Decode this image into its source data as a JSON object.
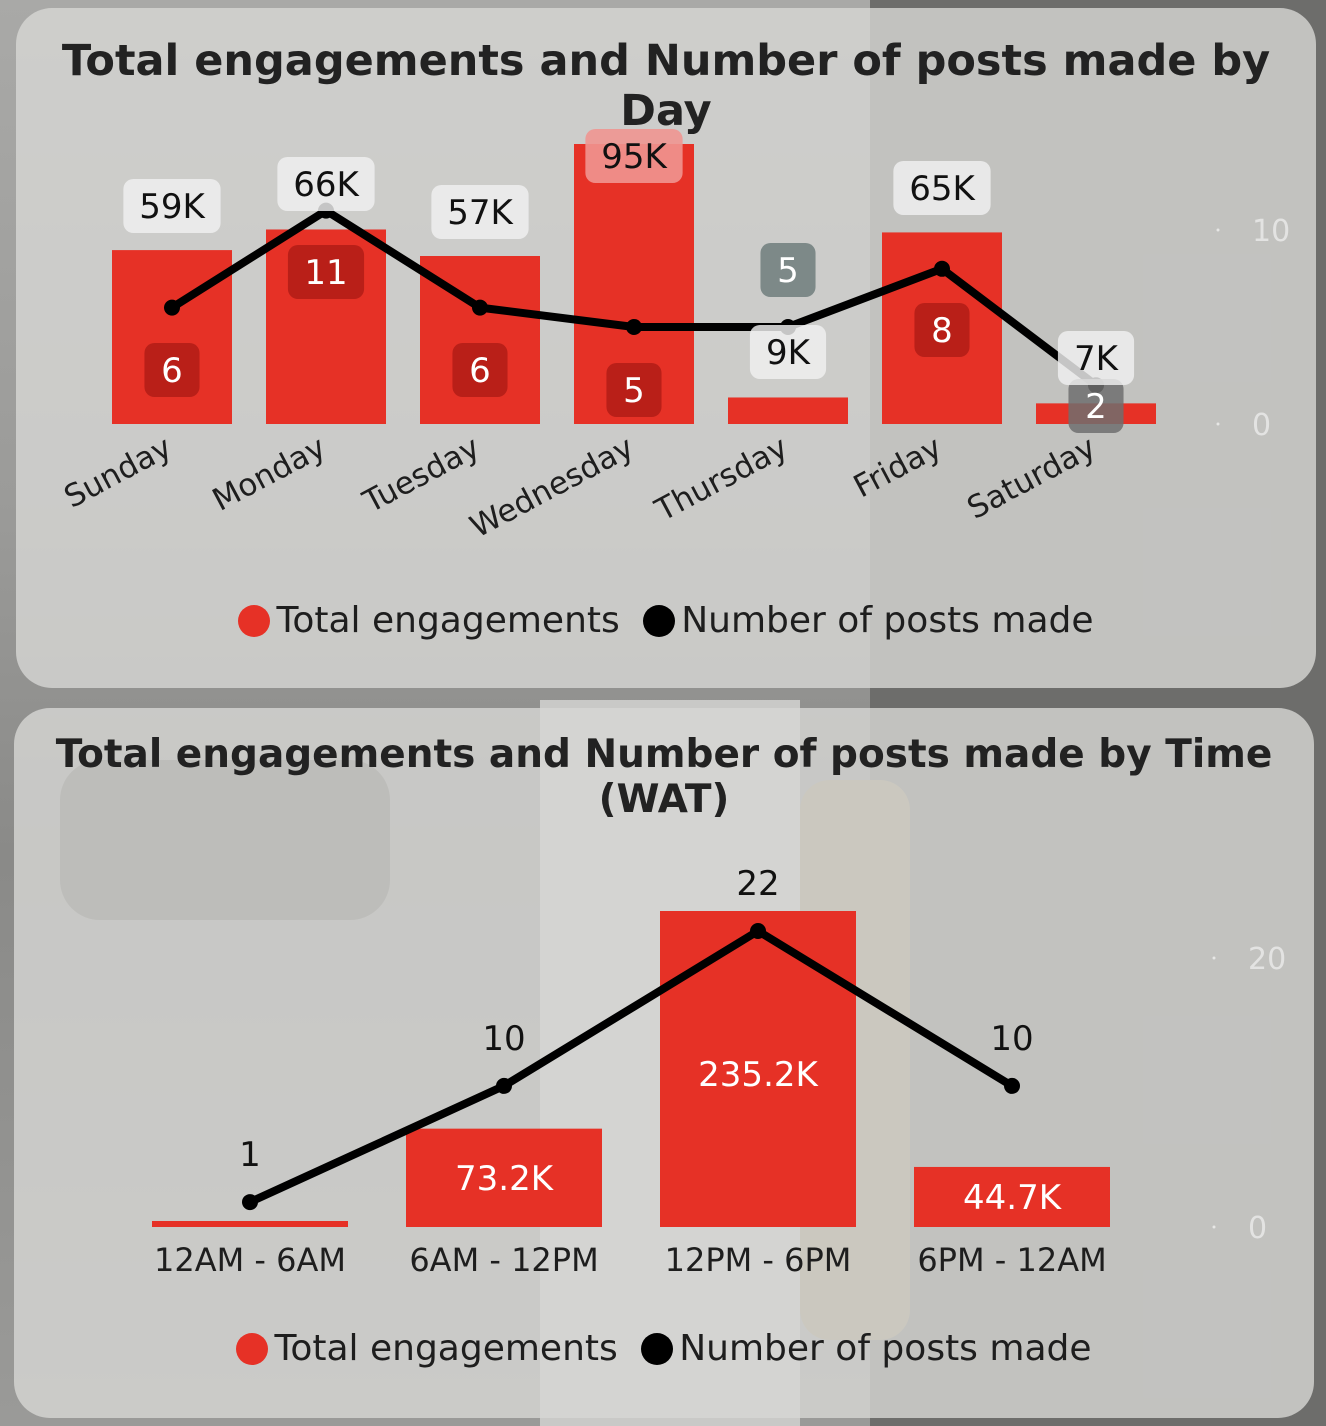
{
  "colors": {
    "bar": "#e63126",
    "line": "#000000",
    "bar_inner_label_bg": "#b9221b"
  },
  "chart_data": [
    {
      "type": "bar+line",
      "title": "Total engagements and Number of posts made by Day",
      "categories": [
        "Sunday",
        "Monday",
        "Tuesday",
        "Wednesday",
        "Thursday",
        "Friday",
        "Saturday"
      ],
      "series": [
        {
          "name": "Total engagements",
          "type": "bar",
          "values": [
            59000,
            66000,
            57000,
            95000,
            9000,
            65000,
            7000
          ],
          "labels": [
            "59K",
            "66K",
            "57K",
            "95K",
            "9K",
            "65K",
            "7K"
          ]
        },
        {
          "name": "Number of posts made",
          "type": "line",
          "values": [
            6,
            11,
            6,
            5,
            5,
            8,
            2
          ],
          "labels": [
            "6",
            "11",
            "6",
            "5",
            "5",
            "8",
            "2"
          ]
        }
      ],
      "secondary_y_ticks": [
        "0",
        "10"
      ],
      "legend": [
        "Total engagements",
        "Number of posts made"
      ],
      "legend_position": "bottom"
    },
    {
      "type": "bar+line",
      "title": "Total engagements and Number of posts made by Time (WAT)",
      "categories": [
        "12AM - 6AM",
        "6AM - 12PM",
        "12PM - 6PM",
        "6PM - 12AM"
      ],
      "series": [
        {
          "name": "Total engagements",
          "type": "bar",
          "values": [
            2000,
            73200,
            235200,
            44700
          ],
          "labels": [
            "",
            "73.2K",
            "235.2K",
            "44.7K"
          ]
        },
        {
          "name": "Number of posts made",
          "type": "line",
          "values": [
            1,
            10,
            22,
            10
          ],
          "labels": [
            "1",
            "10",
            "22",
            "10"
          ]
        }
      ],
      "secondary_y_ticks": [
        "0",
        "20"
      ],
      "legend": [
        "Total engagements",
        "Number of posts made"
      ],
      "legend_position": "bottom"
    }
  ]
}
